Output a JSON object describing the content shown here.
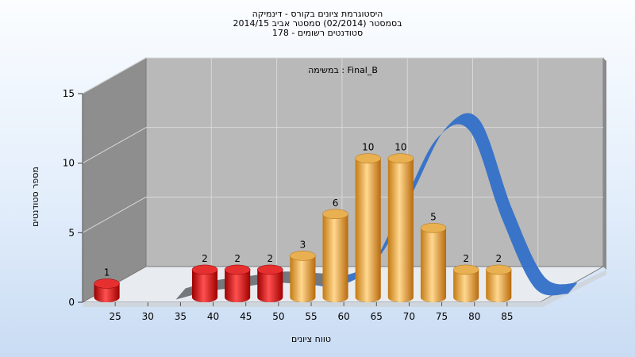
{
  "header": {
    "line1": "היסטוגרמת ציונים בקורס - דינמיקה",
    "line2": "בסמסטר  (02/2014)  סמסטר אביב 2014/15",
    "line3": "סטודנטים רשומים - 178"
  },
  "chart_data": {
    "type": "bar",
    "title": "במשימה : Final_B",
    "xlabel": "טווח ציונים",
    "ylabel": "מספר סטודנטים",
    "ylim": [
      0,
      15
    ],
    "yticks": [
      "0",
      "5",
      "10",
      "15"
    ],
    "xticks": [
      "25",
      "30",
      "35",
      "40",
      "45",
      "50",
      "55",
      "60",
      "65",
      "70",
      "75",
      "80",
      "85"
    ],
    "series": [
      {
        "x": [
          25,
          40,
          45,
          50,
          55,
          60,
          65,
          70,
          75,
          80,
          85
        ],
        "values": [
          1,
          2,
          2,
          2,
          3,
          6,
          10,
          10,
          5,
          2,
          2
        ],
        "colors": [
          "#e01010",
          "#e01010",
          "#e01010",
          "#e01010",
          "#e8a030",
          "#e8a030",
          "#e8a030",
          "#e8a030",
          "#e8a030",
          "#e8a030",
          "#e8a030"
        ]
      }
    ],
    "distribution_curve": {
      "x": [
        30,
        35,
        40,
        45,
        50,
        55,
        60,
        65,
        70,
        75,
        80,
        85,
        90
      ],
      "y": [
        0.1,
        0.7,
        1.0,
        1.3,
        1.2,
        1.1,
        2.6,
        7.2,
        11.7,
        12.2,
        5.8,
        0.9,
        0.5
      ],
      "colors": [
        "#777777",
        "#3370c8"
      ]
    },
    "grid": true,
    "background": "#b9b9b9"
  }
}
